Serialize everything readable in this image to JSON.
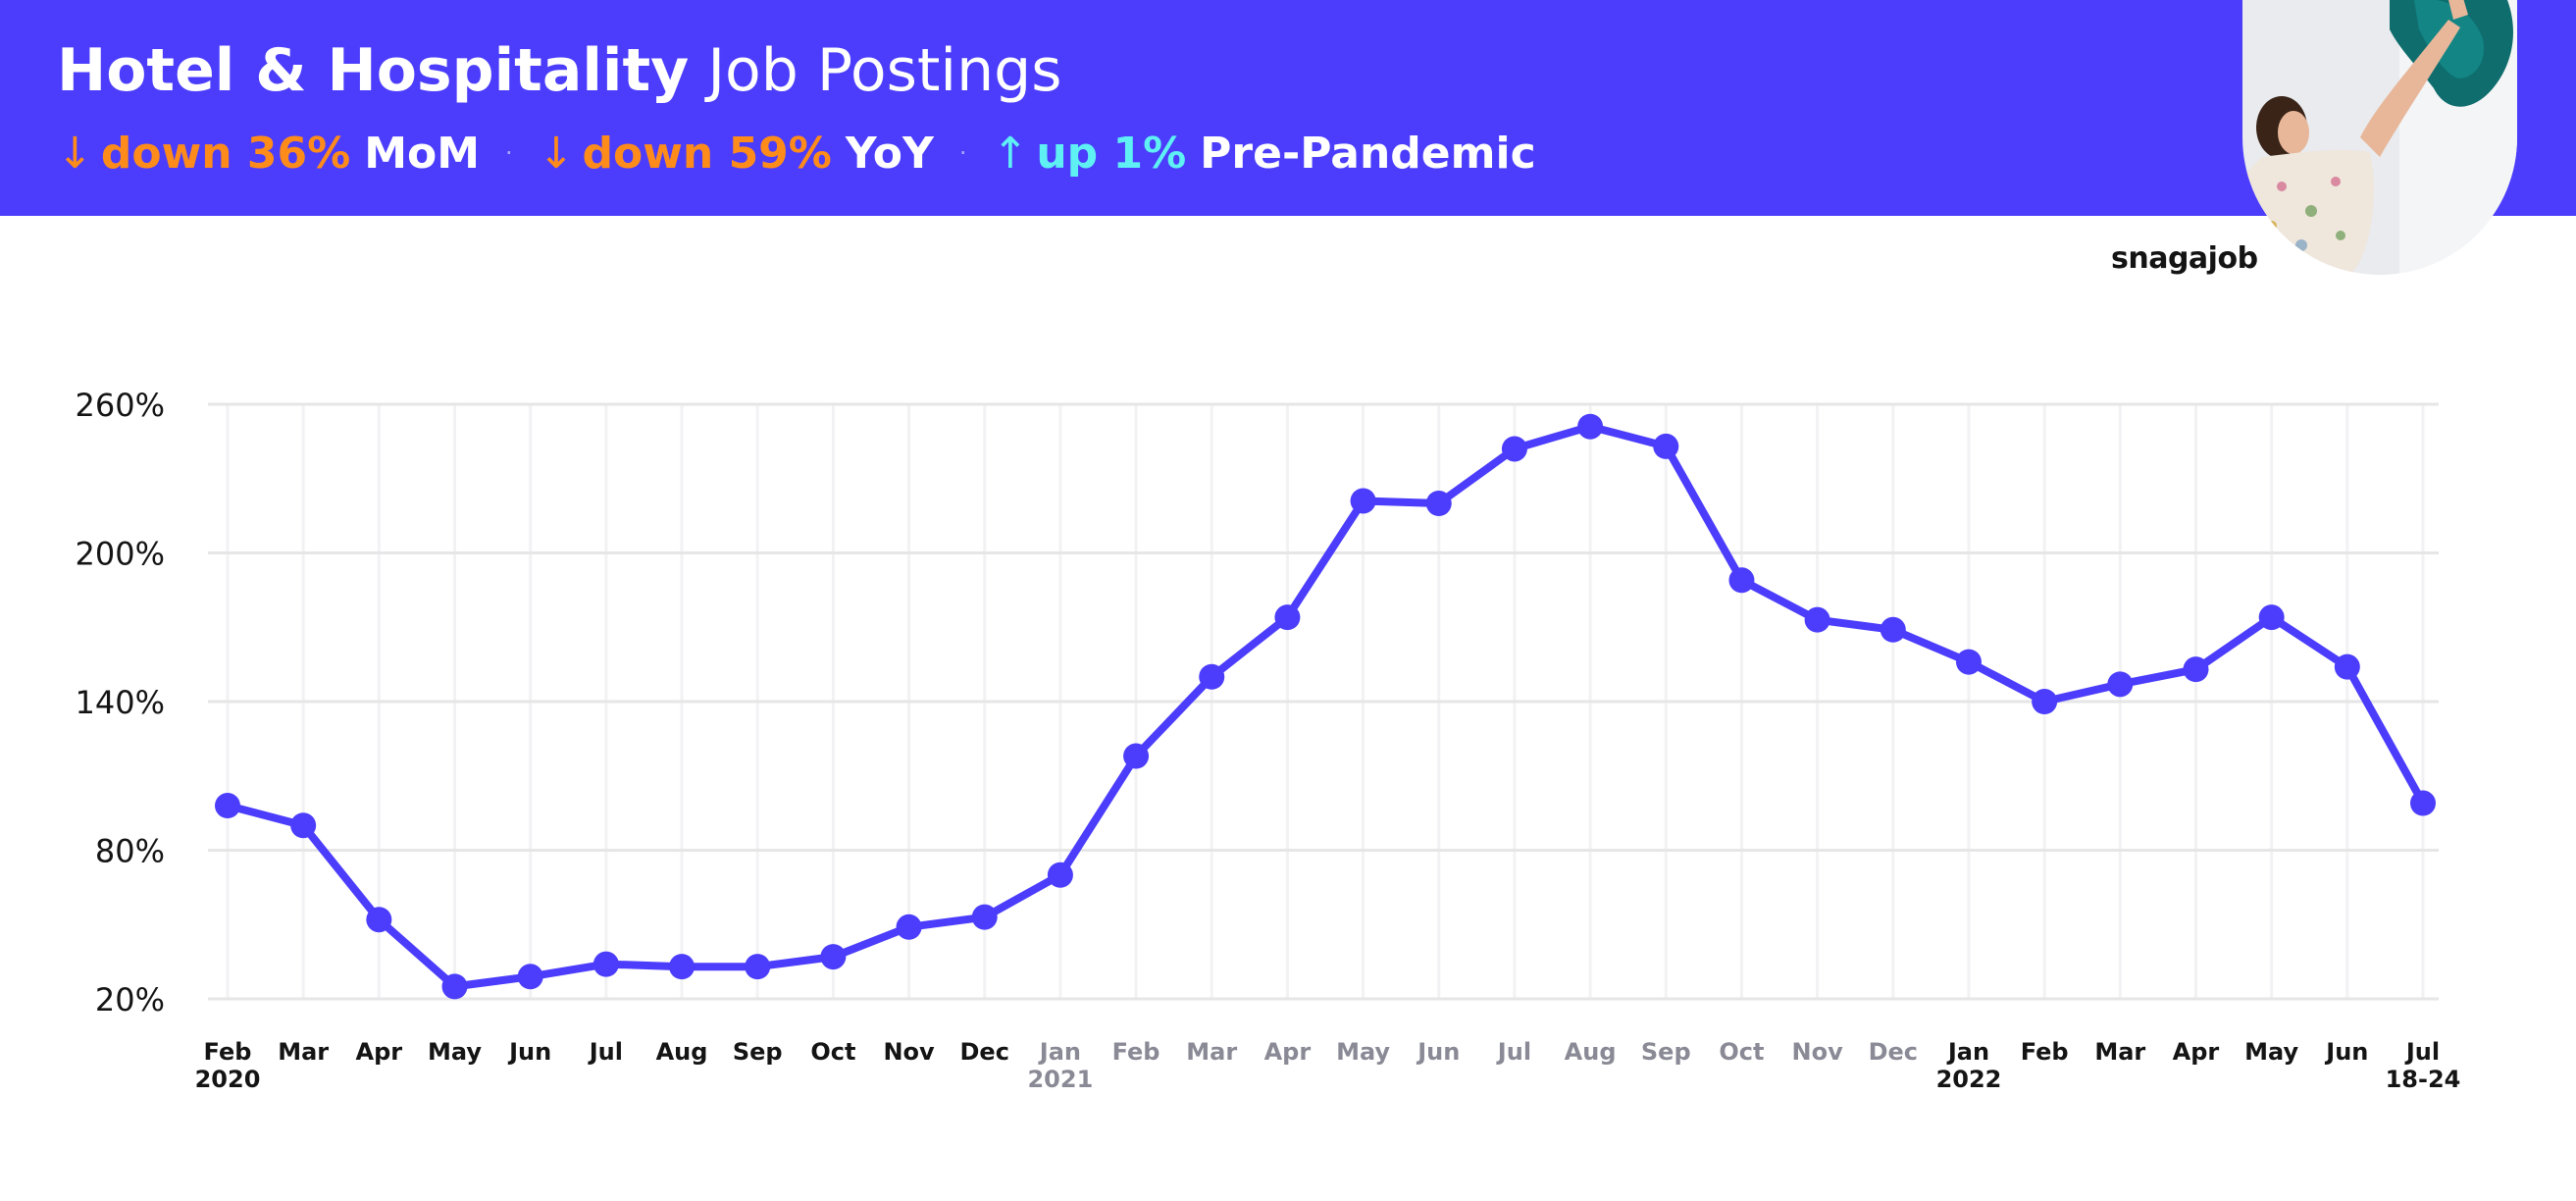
{
  "header": {
    "title_bold": "Hotel & Hospitality",
    "title_regular": "Job Postings",
    "stats": [
      {
        "arrow": "↓",
        "direction": "down",
        "value": "down 36%",
        "metric": "MoM"
      },
      {
        "arrow": "↓",
        "direction": "down",
        "value": "down 59%",
        "metric": "YoY"
      },
      {
        "arrow": "↑",
        "direction": "up",
        "value": "up 1%",
        "metric": "Pre-Pandemic"
      }
    ],
    "separator": "·"
  },
  "brand": "snagajob",
  "colors": {
    "header_bg": "#4b3dfb",
    "line": "#4b3dfb",
    "down": "#ff8c1a",
    "up": "#5ff0f4",
    "grid": "#e6e6e6",
    "tick_dark": "#141414",
    "tick_gray": "#8a8a96"
  },
  "chart_data": {
    "type": "line",
    "title": "Hotel & Hospitality Job Postings",
    "xlabel": "",
    "ylabel": "",
    "ylim": [
      20,
      260
    ],
    "yticks": [
      20,
      80,
      140,
      200,
      260
    ],
    "ytick_labels": [
      "20%",
      "80%",
      "140%",
      "200%",
      "260%"
    ],
    "grid": true,
    "x_labels": [
      {
        "month": "Feb",
        "year": "2020",
        "style": "dark"
      },
      {
        "month": "Mar",
        "year": "",
        "style": "dark"
      },
      {
        "month": "Apr",
        "year": "",
        "style": "dark"
      },
      {
        "month": "May",
        "year": "",
        "style": "dark"
      },
      {
        "month": "Jun",
        "year": "",
        "style": "dark"
      },
      {
        "month": "Jul",
        "year": "",
        "style": "dark"
      },
      {
        "month": "Aug",
        "year": "",
        "style": "dark"
      },
      {
        "month": "Sep",
        "year": "",
        "style": "dark"
      },
      {
        "month": "Oct",
        "year": "",
        "style": "dark"
      },
      {
        "month": "Nov",
        "year": "",
        "style": "dark"
      },
      {
        "month": "Dec",
        "year": "",
        "style": "dark"
      },
      {
        "month": "Jan",
        "year": "2021",
        "style": "gray"
      },
      {
        "month": "Feb",
        "year": "",
        "style": "gray"
      },
      {
        "month": "Mar",
        "year": "",
        "style": "gray"
      },
      {
        "month": "Apr",
        "year": "",
        "style": "gray"
      },
      {
        "month": "May",
        "year": "",
        "style": "gray"
      },
      {
        "month": "Jun",
        "year": "",
        "style": "gray"
      },
      {
        "month": "Jul",
        "year": "",
        "style": "gray"
      },
      {
        "month": "Aug",
        "year": "",
        "style": "gray"
      },
      {
        "month": "Sep",
        "year": "",
        "style": "gray"
      },
      {
        "month": "Oct",
        "year": "",
        "style": "gray"
      },
      {
        "month": "Nov",
        "year": "",
        "style": "gray"
      },
      {
        "month": "Dec",
        "year": "",
        "style": "gray"
      },
      {
        "month": "Jan",
        "year": "2022",
        "style": "dark"
      },
      {
        "month": "Feb",
        "year": "",
        "style": "dark"
      },
      {
        "month": "Mar",
        "year": "",
        "style": "dark"
      },
      {
        "month": "Apr",
        "year": "",
        "style": "dark"
      },
      {
        "month": "May",
        "year": "",
        "style": "dark"
      },
      {
        "month": "Jun",
        "year": "",
        "style": "dark"
      },
      {
        "month": "Jul",
        "year": "18-24",
        "style": "dark"
      }
    ],
    "series": [
      {
        "values": [
          98,
          90,
          52,
          25,
          29,
          34,
          33,
          33,
          37,
          49,
          53,
          70,
          118,
          150,
          174,
          221,
          220,
          242,
          251,
          243,
          189,
          173,
          169,
          156,
          140,
          147,
          153,
          174,
          154,
          99
        ]
      }
    ]
  }
}
